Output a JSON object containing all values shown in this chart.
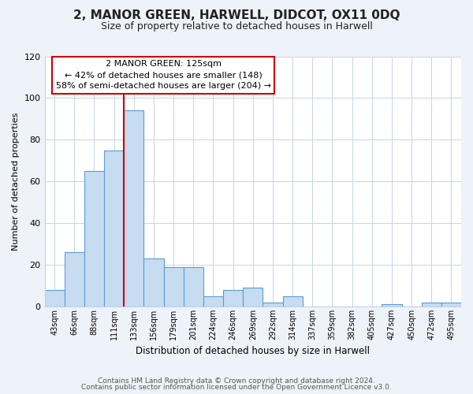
{
  "title": "2, MANOR GREEN, HARWELL, DIDCOT, OX11 0DQ",
  "subtitle": "Size of property relative to detached houses in Harwell",
  "xlabel": "Distribution of detached houses by size in Harwell",
  "ylabel": "Number of detached properties",
  "bar_labels": [
    "43sqm",
    "66sqm",
    "88sqm",
    "111sqm",
    "133sqm",
    "156sqm",
    "179sqm",
    "201sqm",
    "224sqm",
    "246sqm",
    "269sqm",
    "292sqm",
    "314sqm",
    "337sqm",
    "359sqm",
    "382sqm",
    "405sqm",
    "427sqm",
    "450sqm",
    "472sqm",
    "495sqm"
  ],
  "bar_heights": [
    8,
    26,
    65,
    75,
    94,
    23,
    19,
    19,
    5,
    8,
    9,
    2,
    5,
    0,
    0,
    0,
    0,
    1,
    0,
    2,
    2
  ],
  "bar_color": "#c6dcf0",
  "bar_edge_color": "#5b9bd5",
  "vline_index": 4,
  "vline_color": "#cc0000",
  "annotation_title": "2 MANOR GREEN: 125sqm",
  "annotation_line1": "← 42% of detached houses are smaller (148)",
  "annotation_line2": "58% of semi-detached houses are larger (204) →",
  "annotation_box_color": "#ffffff",
  "annotation_box_edge": "#cc0000",
  "ylim": [
    0,
    120
  ],
  "yticks": [
    0,
    20,
    40,
    60,
    80,
    100,
    120
  ],
  "footer1": "Contains HM Land Registry data © Crown copyright and database right 2024.",
  "footer2": "Contains public sector information licensed under the Open Government Licence v3.0.",
  "bg_color": "#eef2f9",
  "plot_bg_color": "#ffffff",
  "grid_color": "#c8d4e8"
}
